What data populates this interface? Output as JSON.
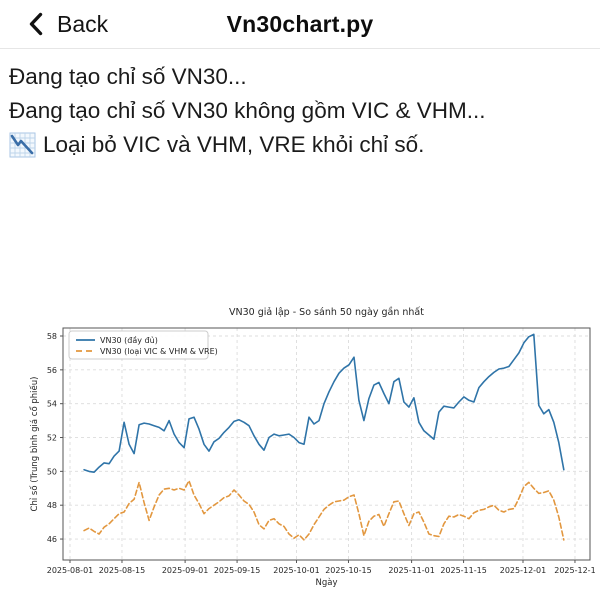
{
  "header": {
    "back_label": "Back",
    "title": "Vn30chart.py"
  },
  "console": {
    "lines": [
      {
        "text": "Đang tạo chỉ số VN30..."
      },
      {
        "text": "Đang tạo chỉ số VN30 không gồm VIC & VHM..."
      },
      {
        "icon": "chart-decreasing-icon",
        "text": "Loại bỏ VIC và VHM, VRE khỏi chỉ số."
      }
    ]
  },
  "chart_data": {
    "type": "line",
    "title": "VN30 giả lập - So sánh 50 ngày gần nhất",
    "xlabel": "Ngày",
    "ylabel": "Chỉ số (Trung bình giá cổ phiếu)",
    "ylim": [
      44.8,
      58.5
    ],
    "grid": true,
    "legend_position": "upper left",
    "y_ticks": [
      46,
      48,
      50,
      52,
      54,
      56,
      58
    ],
    "x_ticks": [
      {
        "label": "2025-08-01",
        "day": 0
      },
      {
        "label": "2025-08-15",
        "day": 14
      },
      {
        "label": "2025-09-01",
        "day": 31
      },
      {
        "label": "2025-09-15",
        "day": 45
      },
      {
        "label": "2025-10-01",
        "day": 61
      },
      {
        "label": "2025-10-15",
        "day": 75
      },
      {
        "label": "2025-11-01",
        "day": 92
      },
      {
        "label": "2025-11-15",
        "day": 106
      },
      {
        "label": "2025-12-01",
        "day": 122
      },
      {
        "label": "2025-12-1",
        "day": 136
      }
    ],
    "x_range_days": [
      3.8,
      133
    ],
    "series": [
      {
        "name": "VN30 (đầy đủ)",
        "color": "#2f74a8",
        "style": "solid",
        "values": [
          50.1,
          50.0,
          49.95,
          50.25,
          50.5,
          50.45,
          50.9,
          51.2,
          52.9,
          51.6,
          51.05,
          52.75,
          52.85,
          52.8,
          52.7,
          52.6,
          52.4,
          53.0,
          52.2,
          51.7,
          51.4,
          53.1,
          53.2,
          52.5,
          51.6,
          51.2,
          51.75,
          51.95,
          52.3,
          52.6,
          52.95,
          53.05,
          52.9,
          52.7,
          52.1,
          51.6,
          51.25,
          52.0,
          52.2,
          52.1,
          52.15,
          52.2,
          52.0,
          51.7,
          51.6,
          53.2,
          52.8,
          53.0,
          54.0,
          54.7,
          55.3,
          55.8,
          56.1,
          56.3,
          56.75,
          54.2,
          53.0,
          54.3,
          55.1,
          55.25,
          54.6,
          54.0,
          55.3,
          55.5,
          54.1,
          53.8,
          54.35,
          52.9,
          52.4,
          52.15,
          51.9,
          53.5,
          53.85,
          53.8,
          53.75,
          54.1,
          54.4,
          54.2,
          54.1,
          54.95,
          55.3,
          55.6,
          55.85,
          56.05,
          56.1,
          56.2,
          56.6,
          57.0,
          57.6,
          57.95,
          58.1,
          53.9,
          53.4,
          53.65,
          52.9,
          51.7,
          50.1
        ]
      },
      {
        "name": "VN30 (loại VIC & VHM & VRE)",
        "color": "#e2973f",
        "style": "dashed",
        "values": [
          46.5,
          46.65,
          46.45,
          46.3,
          46.7,
          46.9,
          47.2,
          47.5,
          47.6,
          48.1,
          48.35,
          49.35,
          48.15,
          47.1,
          47.9,
          48.6,
          48.95,
          49.0,
          48.9,
          49.0,
          48.9,
          49.45,
          48.6,
          48.1,
          47.5,
          47.8,
          48.0,
          48.2,
          48.45,
          48.55,
          48.9,
          48.6,
          48.25,
          48.05,
          47.6,
          46.85,
          46.6,
          47.1,
          47.2,
          46.9,
          46.75,
          46.3,
          46.05,
          46.25,
          45.95,
          46.3,
          46.85,
          47.3,
          47.75,
          48.0,
          48.2,
          48.25,
          48.3,
          48.5,
          48.6,
          47.5,
          46.2,
          47.05,
          47.35,
          47.45,
          46.75,
          47.5,
          48.2,
          48.25,
          47.5,
          46.8,
          47.5,
          47.6,
          47.0,
          46.3,
          46.2,
          46.15,
          46.9,
          47.35,
          47.3,
          47.45,
          47.35,
          47.2,
          47.55,
          47.7,
          47.75,
          47.9,
          48.0,
          47.7,
          47.6,
          47.75,
          47.8,
          48.4,
          49.1,
          49.35,
          49.0,
          48.7,
          48.75,
          48.85,
          48.3,
          47.3,
          45.95
        ]
      }
    ]
  }
}
